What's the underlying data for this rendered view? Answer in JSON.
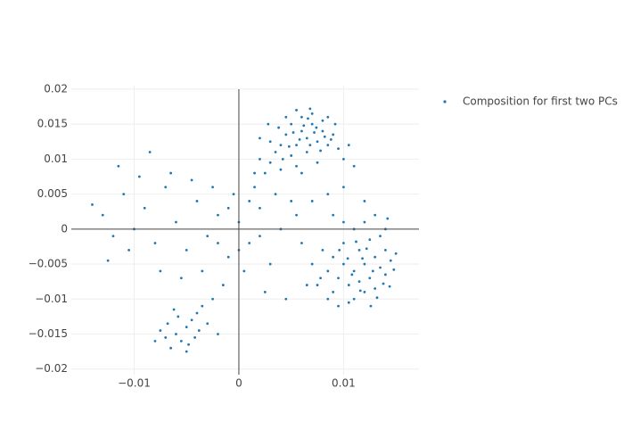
{
  "chart_data": {
    "type": "scatter",
    "xlim": [
      -0.016,
      0.0172
    ],
    "ylim": [
      -0.0208,
      0.0205
    ],
    "xticks": [
      {
        "value": -0.01,
        "label": "−0.01"
      },
      0,
      0.01
    ],
    "yticks": [
      {
        "value": -0.02,
        "label": "−0.02"
      },
      {
        "value": -0.015,
        "label": "−0.015"
      },
      {
        "value": -0.01,
        "label": "−0.01"
      },
      {
        "value": -0.005,
        "label": "−0.005"
      },
      0,
      0.005,
      0.01,
      0.015,
      0.02
    ],
    "grid": true,
    "legend": "right",
    "x": [
      0.0065,
      0.006,
      0.007,
      0.0055,
      0.0075,
      0.008,
      0.005,
      0.0045,
      0.0085,
      0.006,
      0.007,
      0.004,
      0.009,
      0.0065,
      0.005,
      0.0035,
      0.0095,
      0.01,
      0.003,
      0.0025,
      0.0055,
      0.0075,
      0.008,
      0.0045,
      0.0055,
      0.0068,
      0.0085,
      0.0092,
      0.0038,
      0.003,
      0.002,
      0.0015,
      0.0062,
      0.0072,
      0.0058,
      0.0068,
      0.0078,
      0.0048,
      0.0088,
      0.0105,
      0.011,
      0.004,
      0.006,
      0.002,
      0.0028,
      0.0052,
      0.0082,
      0.0066,
      0.0074,
      0.0042,
      0.012,
      0.013,
      0.011,
      0.0125,
      0.0135,
      0.0115,
      0.0105,
      0.014,
      0.01,
      0.0095,
      0.012,
      0.011,
      0.013,
      0.0145,
      0.014,
      0.009,
      0.0085,
      0.01,
      0.0125,
      0.0135,
      0.011,
      0.012,
      0.014,
      0.008,
      0.009,
      0.0105,
      0.0095,
      0.0115,
      0.0128,
      0.0118,
      0.0138,
      0.0148,
      0.0075,
      0.007,
      0.01,
      0.013,
      0.0142,
      0.0112,
      0.0122,
      0.0132,
      0.0085,
      0.0108,
      0.0126,
      0.0096,
      0.0116,
      0.0144,
      0.0078,
      0.015,
      0.009,
      0.0104,
      -0.005,
      -0.006,
      -0.0045,
      -0.0055,
      -0.007,
      -0.004,
      -0.0065,
      -0.0035,
      -0.0075,
      -0.005,
      -0.003,
      -0.0042,
      -0.0058,
      -0.008,
      -0.0025,
      -0.0068,
      -0.0048,
      -0.0062,
      -0.0038,
      -0.002,
      -0.013,
      -0.012,
      -0.011,
      -0.01,
      -0.009,
      -0.008,
      -0.007,
      -0.006,
      -0.005,
      -0.004,
      -0.003,
      -0.002,
      -0.001,
      0.0,
      0.001,
      0.002,
      0.003,
      0.004,
      0.005,
      0.006,
      -0.014,
      -0.0125,
      -0.0115,
      -0.0105,
      -0.0095,
      -0.0085,
      -0.0075,
      -0.0065,
      -0.0055,
      -0.0045,
      -0.0035,
      -0.0025,
      -0.0015,
      -0.0005,
      0.0005,
      0.0015,
      0.0025,
      0.0035,
      0.0045,
      0.0055,
      -0.001,
      -0.002,
      0.0,
      0.001,
      0.002,
      0.0065,
      0.007,
      0.0085,
      0.01,
      0.012
    ],
    "series": [
      {
        "name": "Composition for first two PCs",
        "color": "#1f77b4",
        "values": [
          0.013,
          0.014,
          0.015,
          0.012,
          0.0125,
          0.014,
          0.015,
          0.0135,
          0.012,
          0.016,
          0.0165,
          0.012,
          0.0135,
          0.011,
          0.0105,
          0.011,
          0.0115,
          0.01,
          0.0095,
          0.008,
          0.009,
          0.0095,
          0.0155,
          0.016,
          0.017,
          0.0172,
          0.016,
          0.015,
          0.0145,
          0.0125,
          0.01,
          0.008,
          0.0148,
          0.0138,
          0.0128,
          0.012,
          0.0112,
          0.0118,
          0.0128,
          0.012,
          0.009,
          0.0085,
          0.008,
          0.013,
          0.015,
          0.0138,
          0.0132,
          0.0158,
          0.0145,
          0.01,
          -0.005,
          -0.004,
          -0.006,
          -0.007,
          -0.0055,
          -0.003,
          -0.008,
          -0.003,
          -0.005,
          -0.007,
          -0.009,
          -0.01,
          -0.0085,
          -0.0045,
          -0.0065,
          -0.009,
          -0.006,
          -0.002,
          -0.0015,
          -0.001,
          0.0,
          0.001,
          0.0,
          -0.003,
          -0.004,
          -0.0105,
          -0.011,
          -0.0075,
          -0.006,
          -0.0042,
          -0.0078,
          -0.0058,
          -0.008,
          -0.005,
          0.001,
          0.002,
          0.0015,
          -0.0018,
          -0.0028,
          -0.0098,
          -0.01,
          -0.0065,
          -0.011,
          -0.003,
          -0.0088,
          -0.0082,
          -0.007,
          -0.0035,
          0.002,
          -0.0042,
          -0.014,
          -0.015,
          -0.013,
          -0.016,
          -0.0155,
          -0.012,
          -0.017,
          -0.011,
          -0.0145,
          -0.0175,
          -0.0135,
          -0.0155,
          -0.0125,
          -0.016,
          -0.01,
          -0.0135,
          -0.0165,
          -0.0115,
          -0.0145,
          -0.015,
          0.002,
          -0.001,
          0.005,
          0.0,
          0.003,
          -0.002,
          0.006,
          0.001,
          -0.003,
          0.004,
          -0.001,
          0.002,
          -0.004,
          0.001,
          -0.002,
          0.003,
          -0.005,
          0.0,
          0.004,
          -0.002,
          0.0035,
          -0.0045,
          0.009,
          -0.003,
          0.0075,
          0.011,
          -0.006,
          0.008,
          -0.007,
          0.007,
          -0.006,
          0.006,
          -0.008,
          0.005,
          -0.006,
          0.006,
          -0.009,
          0.005,
          -0.01,
          0.002,
          0.003,
          -0.002,
          -0.003,
          0.004,
          -0.001,
          -0.008,
          0.004,
          0.005,
          0.006,
          0.004
        ]
      }
    ]
  }
}
